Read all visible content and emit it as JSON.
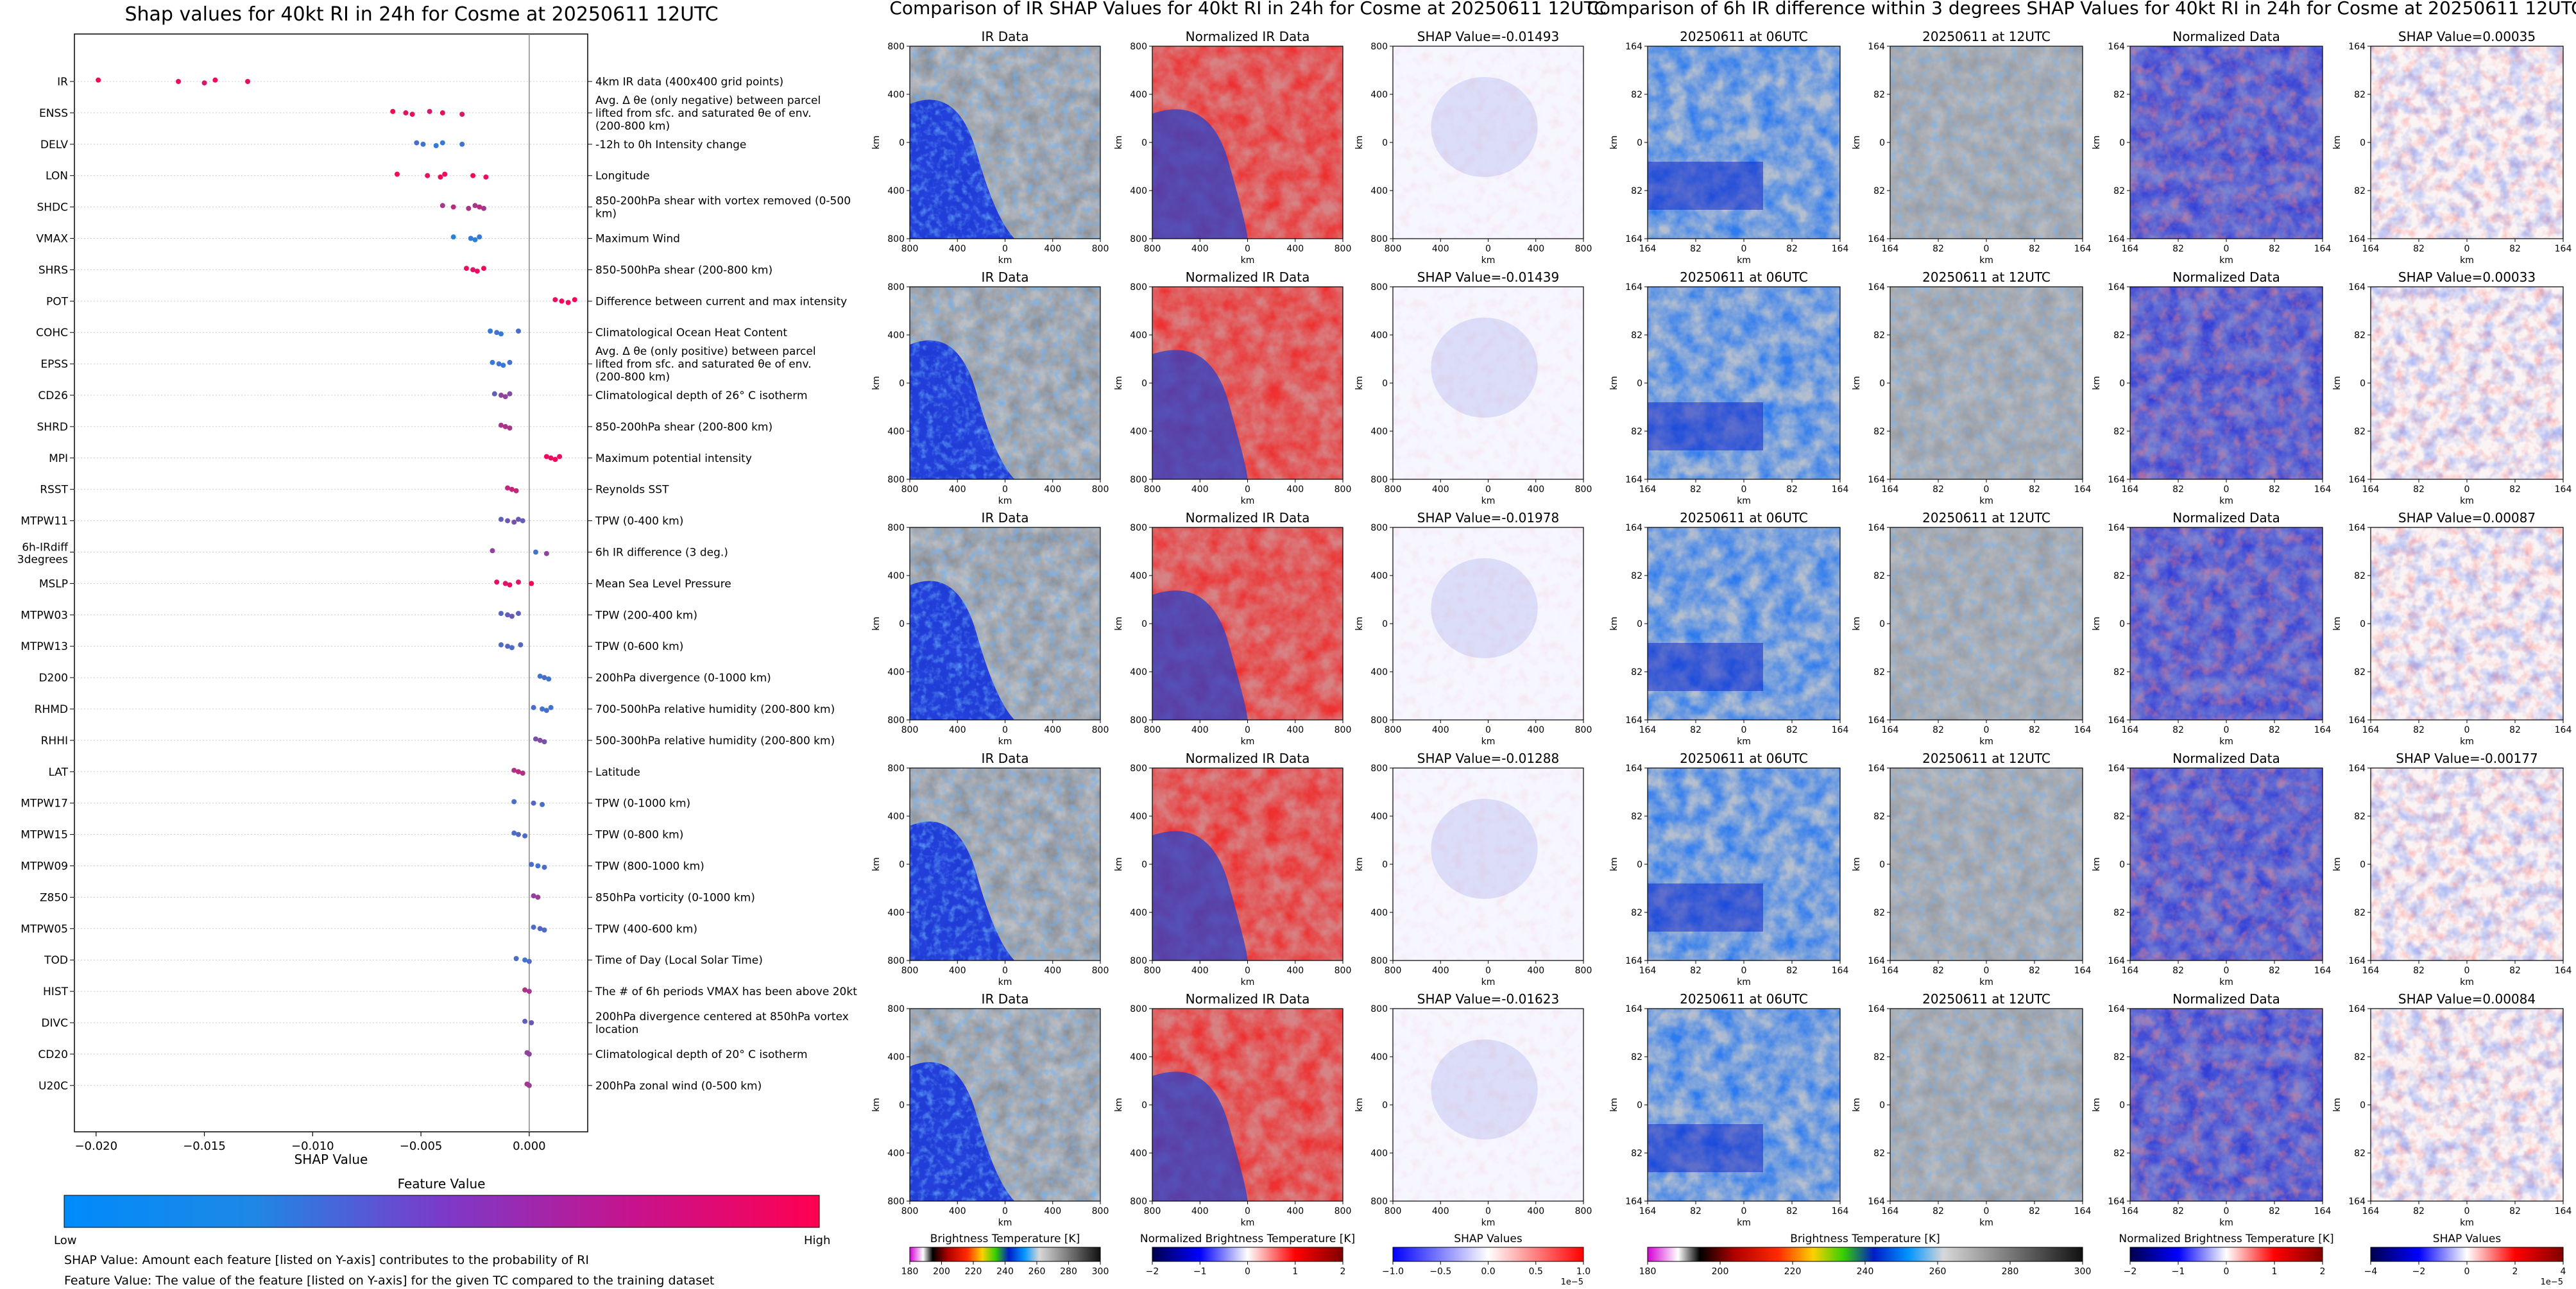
{
  "beeswarm": {
    "title": "Shap values for 40kt RI in 24h for Cosme at 20250611 12UTC",
    "xlabel": "SHAP Value",
    "xticks": [
      -0.02,
      -0.015,
      -0.01,
      -0.005,
      0.0
    ],
    "xtick_labels": [
      "−0.020",
      "−0.015",
      "−0.010",
      "−0.005",
      "0.000"
    ],
    "colorbar_title": "Feature Value",
    "colorbar_low": "Low",
    "colorbar_high": "High",
    "footnote1": "SHAP Value: Amount each feature [listed on Y-axis] contributes to the probability of RI",
    "footnote2": "Feature Value: The value of the feature [listed on Y-axis] for the given TC compared to the training dataset",
    "colors": {
      "low": "#1e88e5",
      "high": "#ff0051"
    }
  },
  "chart_data": [
    {
      "type": "scatter",
      "title": "Shap values for 40kt RI in 24h for Cosme at 20250611 12UTC",
      "xlabel": "SHAP Value",
      "xlim": [
        -0.021,
        0.0027
      ],
      "features": [
        {
          "name": "IR",
          "desc": "4km IR data (400x400 grid points)",
          "points": [
            [
              -0.0199,
              0.95
            ],
            [
              -0.0162,
              0.9
            ],
            [
              -0.015,
              0.85
            ],
            [
              -0.0145,
              0.95
            ],
            [
              -0.013,
              0.9
            ]
          ]
        },
        {
          "name": "ENSS",
          "desc": "Avg. Δ θe (only negative) between parcel lifted from sfc. and saturated θe of env. (200-800 km)",
          "points": [
            [
              -0.0063,
              0.95
            ],
            [
              -0.0057,
              0.9
            ],
            [
              -0.0054,
              0.92
            ],
            [
              -0.0046,
              0.8
            ],
            [
              -0.004,
              0.9
            ],
            [
              -0.0031,
              0.85
            ]
          ]
        },
        {
          "name": "DELV",
          "desc": "-12h to 0h Intensity change",
          "points": [
            [
              -0.0052,
              0.2
            ],
            [
              -0.0049,
              0.15
            ],
            [
              -0.0043,
              0.1
            ],
            [
              -0.004,
              0.1
            ],
            [
              -0.0031,
              0.15
            ]
          ]
        },
        {
          "name": "LON",
          "desc": "Longitude",
          "points": [
            [
              -0.0061,
              0.95
            ],
            [
              -0.0047,
              0.9
            ],
            [
              -0.0041,
              0.95
            ],
            [
              -0.0039,
              0.9
            ],
            [
              -0.0026,
              0.95
            ],
            [
              -0.002,
              0.9
            ]
          ]
        },
        {
          "name": "SHDC",
          "desc": "850-200hPa shear with vortex removed (0-500 km)",
          "points": [
            [
              -0.004,
              0.6
            ],
            [
              -0.0035,
              0.7
            ],
            [
              -0.0028,
              0.65
            ],
            [
              -0.0025,
              0.6
            ],
            [
              -0.0023,
              0.7
            ],
            [
              -0.0021,
              0.6
            ]
          ]
        },
        {
          "name": "VMAX",
          "desc": "Maximum Wind",
          "points": [
            [
              -0.0035,
              0.05
            ],
            [
              -0.0027,
              0.1
            ],
            [
              -0.0025,
              0.05
            ],
            [
              -0.0023,
              0.1
            ]
          ]
        },
        {
          "name": "SHRS",
          "desc": "850-500hPa shear (200-800 km)",
          "points": [
            [
              -0.0029,
              0.9
            ],
            [
              -0.0026,
              0.85
            ],
            [
              -0.0024,
              0.9
            ],
            [
              -0.0021,
              0.95
            ]
          ]
        },
        {
          "name": "POT",
          "desc": "Difference between current and max intensity",
          "points": [
            [
              0.0012,
              0.9
            ],
            [
              0.0015,
              0.95
            ],
            [
              0.0018,
              0.9
            ],
            [
              0.0021,
              0.95
            ]
          ]
        },
        {
          "name": "COHC",
          "desc": "Climatological Ocean Heat Content",
          "points": [
            [
              -0.0018,
              0.1
            ],
            [
              -0.0015,
              0.15
            ],
            [
              -0.0013,
              0.1
            ],
            [
              -0.0005,
              0.2
            ]
          ]
        },
        {
          "name": "EPSS",
          "desc": "Avg. Δ θe (only positive) between parcel lifted from sfc. and saturated θe of env. (200-800 km)",
          "points": [
            [
              -0.0017,
              0.1
            ],
            [
              -0.0014,
              0.15
            ],
            [
              -0.0012,
              0.1
            ],
            [
              -0.0009,
              0.15
            ]
          ]
        },
        {
          "name": "CD26",
          "desc": "Climatological depth of 26° C isotherm",
          "points": [
            [
              -0.0016,
              0.3
            ],
            [
              -0.0013,
              0.5
            ],
            [
              -0.0011,
              0.5
            ],
            [
              -0.0009,
              0.45
            ]
          ]
        },
        {
          "name": "SHRD",
          "desc": "850-200hPa shear (200-800 km)",
          "points": [
            [
              -0.0013,
              0.6
            ],
            [
              -0.0011,
              0.65
            ],
            [
              -0.0009,
              0.6
            ]
          ]
        },
        {
          "name": "MPI",
          "desc": "Maximum potential intensity",
          "points": [
            [
              0.0008,
              0.95
            ],
            [
              0.001,
              0.9
            ],
            [
              0.0012,
              0.95
            ],
            [
              0.0014,
              0.9
            ]
          ]
        },
        {
          "name": "RSST",
          "desc": "Reynolds SST",
          "points": [
            [
              -0.001,
              0.7
            ],
            [
              -0.0008,
              0.75
            ],
            [
              -0.0006,
              0.7
            ]
          ]
        },
        {
          "name": "MTPW11",
          "desc": "TPW (0-400 km)",
          "points": [
            [
              -0.0013,
              0.3
            ],
            [
              -0.001,
              0.35
            ],
            [
              -0.0007,
              0.4
            ],
            [
              -0.0005,
              0.35
            ],
            [
              -0.0003,
              0.3
            ]
          ]
        },
        {
          "name": "6h-IRdiff 3degrees",
          "desc": "6h IR difference (3 deg.)",
          "points": [
            [
              -0.0017,
              0.5
            ],
            [
              0.0003,
              0.15
            ],
            [
              0.0008,
              0.5
            ]
          ]
        },
        {
          "name": "MSLP",
          "desc": "Mean Sea Level Pressure",
          "points": [
            [
              -0.0015,
              0.9
            ],
            [
              -0.0011,
              0.85
            ],
            [
              -0.0009,
              0.9
            ],
            [
              -0.0005,
              0.85
            ],
            [
              0.0001,
              0.95
            ]
          ]
        },
        {
          "name": "MTPW03",
          "desc": "TPW (200-400 km)",
          "points": [
            [
              -0.0013,
              0.25
            ],
            [
              -0.001,
              0.3
            ],
            [
              -0.0008,
              0.35
            ],
            [
              -0.0005,
              0.3
            ]
          ]
        },
        {
          "name": "MTPW13",
          "desc": "TPW (0-600 km)",
          "points": [
            [
              -0.0013,
              0.2
            ],
            [
              -0.001,
              0.25
            ],
            [
              -0.0008,
              0.2
            ],
            [
              -0.0004,
              0.25
            ]
          ]
        },
        {
          "name": "D200",
          "desc": "200hPa divergence (0-1000 km)",
          "points": [
            [
              0.0005,
              0.15
            ],
            [
              0.0007,
              0.2
            ],
            [
              0.0009,
              0.15
            ]
          ]
        },
        {
          "name": "RHMD",
          "desc": "700-500hPa relative humidity (200-800 km)",
          "points": [
            [
              0.0002,
              0.2
            ],
            [
              0.0006,
              0.15
            ],
            [
              0.0008,
              0.2
            ],
            [
              0.001,
              0.15
            ]
          ]
        },
        {
          "name": "RHHI",
          "desc": "500-300hPa relative humidity (200-800 km)",
          "points": [
            [
              0.0003,
              0.4
            ],
            [
              0.0005,
              0.45
            ],
            [
              0.0007,
              0.4
            ]
          ]
        },
        {
          "name": "LAT",
          "desc": "Latitude",
          "points": [
            [
              -0.0007,
              0.65
            ],
            [
              -0.0005,
              0.7
            ],
            [
              -0.0003,
              0.65
            ]
          ]
        },
        {
          "name": "MTPW17",
          "desc": "TPW (0-1000 km)",
          "points": [
            [
              -0.0007,
              0.2
            ],
            [
              0.0002,
              0.25
            ],
            [
              0.0006,
              0.2
            ]
          ]
        },
        {
          "name": "MTPW15",
          "desc": "TPW (0-800 km)",
          "points": [
            [
              -0.0007,
              0.2
            ],
            [
              -0.0005,
              0.25
            ],
            [
              -0.0002,
              0.2
            ]
          ]
        },
        {
          "name": "MTPW09",
          "desc": "TPW (800-1000 km)",
          "points": [
            [
              0.0001,
              0.2
            ],
            [
              0.0004,
              0.15
            ],
            [
              0.0007,
              0.2
            ]
          ]
        },
        {
          "name": "Z850",
          "desc": "850hPa vorticity (0-1000 km)",
          "points": [
            [
              0.0002,
              0.5
            ],
            [
              0.0004,
              0.55
            ]
          ]
        },
        {
          "name": "MTPW05",
          "desc": "TPW (400-600 km)",
          "points": [
            [
              0.0002,
              0.2
            ],
            [
              0.0005,
              0.25
            ],
            [
              0.0007,
              0.2
            ]
          ]
        },
        {
          "name": "TOD",
          "desc": "Time of Day (Local Solar Time)",
          "points": [
            [
              -0.0006,
              0.2
            ],
            [
              -0.0002,
              0.15
            ],
            [
              0.0,
              0.2
            ]
          ]
        },
        {
          "name": "HIST",
          "desc": "The # of 6h periods VMAX has been above 20kt",
          "points": [
            [
              -0.0002,
              0.65
            ],
            [
              0.0,
              0.6
            ]
          ]
        },
        {
          "name": "DIVC",
          "desc": "200hPa divergence centered at 850hPa vortex location",
          "points": [
            [
              -0.0002,
              0.3
            ],
            [
              0.0001,
              0.35
            ]
          ]
        },
        {
          "name": "CD20",
          "desc": "Climatological depth of 20° C isotherm",
          "points": [
            [
              -0.0001,
              0.5
            ],
            [
              0.0,
              0.5
            ]
          ]
        },
        {
          "name": "U20C",
          "desc": "200hPa zonal wind (0-500 km)",
          "points": [
            [
              -0.0001,
              0.6
            ],
            [
              0.0,
              0.55
            ]
          ]
        }
      ]
    },
    {
      "type": "heatmap",
      "title": "Comparison of IR SHAP Values for 40kt RI in 24h for Cosme at 20250611 12UTC",
      "columns": [
        "IR Data",
        "Normalized IR Data"
      ],
      "shap_values": [
        "SHAP Value=-0.01493",
        "SHAP Value=-0.01439",
        "SHAP Value=-0.01978",
        "SHAP Value=-0.01288",
        "SHAP Value=-0.01623"
      ],
      "xlabel": "km",
      "ylabel": "km",
      "tick_labels": [
        "800",
        "400",
        "0",
        "400",
        "800"
      ],
      "colorbars": [
        {
          "label": "Brightness Temperature [K]",
          "ticks": [
            "180",
            "200",
            "220",
            "240",
            "260",
            "280",
            "300"
          ]
        },
        {
          "label": "Normalized Brightness Temperature [K]",
          "ticks": [
            "−2",
            "−1",
            "0",
            "1",
            "2"
          ]
        },
        {
          "label": "SHAP Values",
          "ticks": [
            "−1.0",
            "−0.5",
            "0.0",
            "0.5",
            "1.0"
          ],
          "scale": "1e−5"
        }
      ]
    },
    {
      "type": "heatmap",
      "title": "Comparison of 6h IR difference within 3 degrees SHAP Values for 40kt RI in 24h for Cosme at 20250611 12UTC",
      "columns": [
        "20250611 at 06UTC",
        "20250611 at 12UTC",
        "Normalized Data"
      ],
      "shap_values": [
        "SHAP Value=0.00035",
        "SHAP Value=0.00033",
        "SHAP Value=0.00087",
        "SHAP Value=-0.00177",
        "SHAP Value=0.00084"
      ],
      "xlabel": "km",
      "ylabel": "km",
      "tick_labels": [
        "164",
        "82",
        "0",
        "82",
        "164"
      ],
      "colorbars": [
        {
          "label": "Brightness Temperature [K]",
          "ticks": [
            "180",
            "200",
            "220",
            "240",
            "260",
            "280",
            "300"
          ]
        },
        {
          "label": "Normalized Brightness Temperature [K]",
          "ticks": [
            "−2",
            "−1",
            "0",
            "1",
            "2"
          ]
        },
        {
          "label": "SHAP Values",
          "ticks": [
            "−4",
            "−2",
            "0",
            "2",
            "4"
          ],
          "scale": "1e−5"
        }
      ]
    }
  ]
}
